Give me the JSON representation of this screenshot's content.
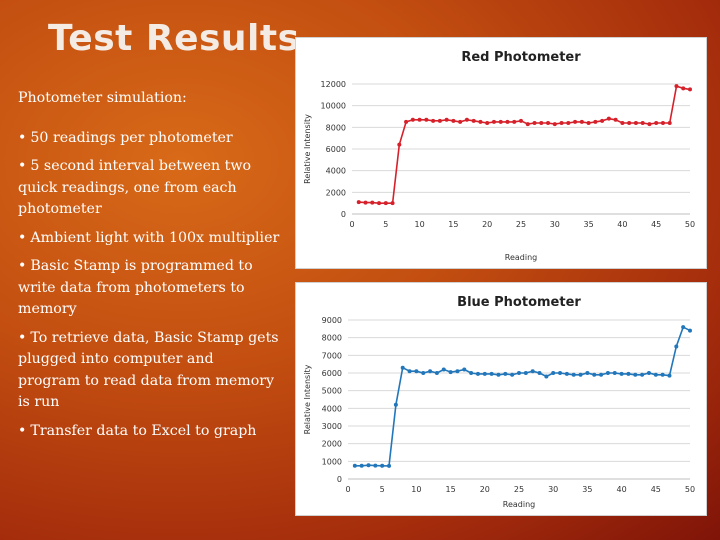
{
  "slide": {
    "title": "Test Results",
    "intro": "Photometer simulation:",
    "bullet_symbol": "•",
    "bullets": [
      "50 readings per photometer",
      "5 second interval between two quick readings, one from each photometer",
      "Ambient light with 100x multiplier",
      "Basic Stamp is programmed to write data from photometers to memory",
      "To retrieve data, Basic Stamp gets plugged into computer and program to read data from memory is run",
      "Transfer data to Excel to graph"
    ]
  },
  "chart_data": [
    {
      "type": "line",
      "title": "Red Photometer",
      "xlabel": "Reading",
      "ylabel": "Relative Intensity",
      "xlim": [
        0,
        50
      ],
      "ylim": [
        0,
        12000
      ],
      "xticks": [
        0,
        5,
        10,
        15,
        20,
        25,
        30,
        35,
        40,
        45,
        50
      ],
      "yticks": [
        0,
        2000,
        4000,
        6000,
        8000,
        10000,
        12000
      ],
      "grid": "horizontal",
      "color": "#d6212b",
      "series": [
        {
          "x": [
            1,
            2,
            3,
            4,
            5,
            6,
            7,
            8,
            9,
            10,
            11,
            12,
            13,
            14,
            15,
            16,
            17,
            18,
            19,
            20,
            21,
            22,
            23,
            24,
            25,
            26,
            27,
            28,
            29,
            30,
            31,
            32,
            33,
            34,
            35,
            36,
            37,
            38,
            39,
            40,
            41,
            42,
            43,
            44,
            45,
            46,
            47,
            48,
            49,
            50
          ],
          "values": [
            1100,
            1050,
            1050,
            1000,
            1000,
            1000,
            6400,
            8500,
            8700,
            8700,
            8700,
            8600,
            8600,
            8700,
            8600,
            8500,
            8700,
            8600,
            8500,
            8400,
            8500,
            8500,
            8500,
            8500,
            8600,
            8300,
            8400,
            8400,
            8400,
            8300,
            8400,
            8400,
            8500,
            8500,
            8400,
            8500,
            8600,
            8800,
            8700,
            8400,
            8400,
            8400,
            8400,
            8300,
            8400,
            8400,
            8400,
            11800,
            11600,
            11500
          ]
        }
      ]
    },
    {
      "type": "line",
      "title": "Blue Photometer",
      "xlabel": "Reading",
      "ylabel": "Relative Intensity",
      "xlim": [
        0,
        50
      ],
      "ylim": [
        0,
        9000
      ],
      "xticks": [
        0,
        5,
        10,
        15,
        20,
        25,
        30,
        35,
        40,
        45,
        50
      ],
      "yticks": [
        0,
        1000,
        2000,
        3000,
        4000,
        5000,
        6000,
        7000,
        8000,
        9000
      ],
      "grid": "horizontal",
      "color": "#2277bb",
      "series": [
        {
          "x": [
            1,
            2,
            3,
            4,
            5,
            6,
            7,
            8,
            9,
            10,
            11,
            12,
            13,
            14,
            15,
            16,
            17,
            18,
            19,
            20,
            21,
            22,
            23,
            24,
            25,
            26,
            27,
            28,
            29,
            30,
            31,
            32,
            33,
            34,
            35,
            36,
            37,
            38,
            39,
            40,
            41,
            42,
            43,
            44,
            45,
            46,
            47,
            48,
            49,
            50
          ],
          "values": [
            750,
            750,
            780,
            760,
            750,
            740,
            4200,
            6300,
            6100,
            6100,
            6000,
            6100,
            6000,
            6200,
            6050,
            6100,
            6200,
            6000,
            5950,
            5950,
            5950,
            5900,
            5950,
            5900,
            6000,
            6000,
            6100,
            6000,
            5800,
            6000,
            6000,
            5950,
            5900,
            5900,
            6000,
            5900,
            5900,
            6000,
            6000,
            5950,
            5950,
            5900,
            5900,
            6000,
            5900,
            5900,
            5850,
            7500,
            8600,
            8400
          ]
        }
      ]
    }
  ]
}
